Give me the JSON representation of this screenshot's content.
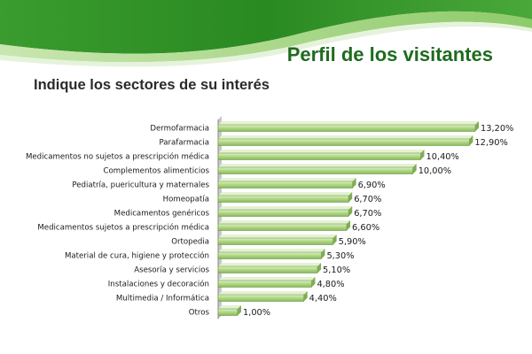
{
  "header": {
    "title": "Perfil de los visitantes",
    "colors": {
      "dark_green": "#2e8b2e",
      "light_green": "#9fd07a"
    }
  },
  "chart_data": {
    "type": "bar",
    "orientation": "horizontal",
    "title": "Indique los sectores de su interés",
    "xlabel": "",
    "ylabel": "",
    "xlim": [
      0,
      13.2
    ],
    "grid": false,
    "legend": "none",
    "bar_color": "#b5d98a",
    "categories": [
      "Dermofarmacia",
      "Parafarmacia",
      "Medicamentos no sujetos a prescripción médica",
      "Complementos alimenticios",
      "Pediatría, puericultura y maternales",
      "Homeopatía",
      "Medicamentos genéricos",
      "Medicamentos sujetos a prescripción médica",
      "Ortopedia",
      "Material de cura, higiene y protección",
      "Asesoría y servicios",
      "Instalaciones y decoración",
      "Multimedia / Informática",
      "Otros"
    ],
    "values": [
      13.2,
      12.9,
      10.4,
      10.0,
      6.9,
      6.7,
      6.7,
      6.6,
      5.9,
      5.3,
      5.1,
      4.8,
      4.4,
      1.0
    ],
    "value_labels": [
      "13,20%",
      "12,90%",
      "10,40%",
      "10,00%",
      "6,90%",
      "6,70%",
      "6,70%",
      "6,60%",
      "5,90%",
      "5,30%",
      "5,10%",
      "4,80%",
      "4,40%",
      "1,00%"
    ]
  }
}
